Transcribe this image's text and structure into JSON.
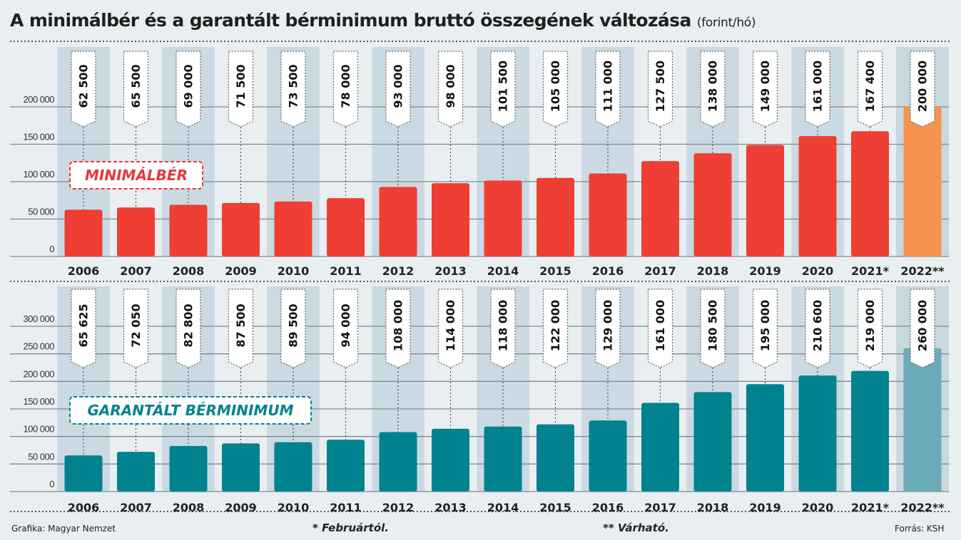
{
  "title": "A minimálbér és a garantált bérminimum bruttó összegének változása",
  "unit": "(forint/hó)",
  "chart_data": [
    {
      "type": "bar",
      "label": "MINIMÁLBÉR",
      "categories": [
        "2006",
        "2007",
        "2008",
        "2009",
        "2010",
        "2011",
        "2012",
        "2013",
        "2014",
        "2015",
        "2016",
        "2017",
        "2018",
        "2019",
        "2020",
        "2021*",
        "2022**"
      ],
      "values": [
        62500,
        65500,
        69000,
        71500,
        73500,
        78000,
        93000,
        98000,
        101500,
        105000,
        111000,
        127500,
        138000,
        149000,
        161000,
        167400,
        200000
      ],
      "data_labels": [
        "62 500",
        "65 500",
        "69 000",
        "71 500",
        "73 500",
        "78 000",
        "93 000",
        "98 000",
        "101 500",
        "105 000",
        "111 000",
        "127 500",
        "138 000",
        "149 000",
        "161 000",
        "167 400",
        "200 000"
      ],
      "yticks": [
        "0",
        "50 000",
        "100 000",
        "150 000",
        "200 000"
      ],
      "ytick_values": [
        0,
        50000,
        100000,
        150000,
        200000
      ],
      "ylim": [
        0,
        200000
      ],
      "colors": {
        "actual": "#ef3e33",
        "forecast": "#f7934c",
        "label": "#e8373a"
      },
      "grid": true
    },
    {
      "type": "bar",
      "label": "GARANTÁLT BÉRMINIMUM",
      "categories": [
        "2006",
        "2007",
        "2008",
        "2009",
        "2010",
        "2011",
        "2012",
        "2013",
        "2014",
        "2015",
        "2016",
        "2017",
        "2018",
        "2019",
        "2020",
        "2021*",
        "2022**"
      ],
      "values": [
        65625,
        72050,
        82800,
        87500,
        89500,
        94000,
        108000,
        114000,
        118000,
        122000,
        129000,
        161000,
        180500,
        195000,
        210600,
        219000,
        260000
      ],
      "data_labels": [
        "65 625",
        "72 050",
        "82 800",
        "87 500",
        "89 500",
        "94 000",
        "108 000",
        "114 000",
        "118 000",
        "122 000",
        "129 000",
        "161 000",
        "180 500",
        "195 000",
        "210 600",
        "219 000",
        "260 000"
      ],
      "yticks": [
        "0",
        "50 000",
        "100 000",
        "150 000",
        "200 000",
        "250 000",
        "300 000"
      ],
      "ytick_values": [
        0,
        50000,
        100000,
        150000,
        200000,
        250000,
        300000
      ],
      "ylim": [
        0,
        300000
      ],
      "colors": {
        "actual": "#00838f",
        "forecast": "#6aadb8",
        "label": "#00838f"
      },
      "grid": true
    }
  ],
  "footer": {
    "credit": "Grafika: Magyar Nemzet",
    "note1": "* Februártól.",
    "note2": "** Várható.",
    "source": "Forrás: KSH"
  }
}
